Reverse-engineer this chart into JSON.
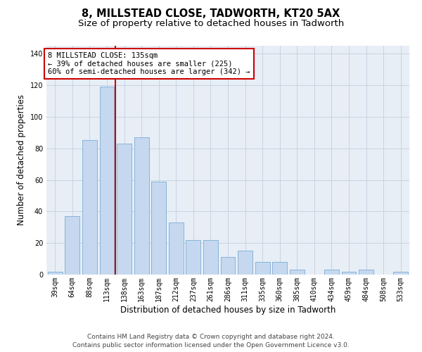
{
  "title": "8, MILLSTEAD CLOSE, TADWORTH, KT20 5AX",
  "subtitle": "Size of property relative to detached houses in Tadworth",
  "xlabel": "Distribution of detached houses by size in Tadworth",
  "ylabel": "Number of detached properties",
  "categories": [
    "39sqm",
    "64sqm",
    "88sqm",
    "113sqm",
    "138sqm",
    "163sqm",
    "187sqm",
    "212sqm",
    "237sqm",
    "261sqm",
    "286sqm",
    "311sqm",
    "335sqm",
    "360sqm",
    "385sqm",
    "410sqm",
    "434sqm",
    "459sqm",
    "484sqm",
    "508sqm",
    "533sqm"
  ],
  "values": [
    2,
    37,
    85,
    119,
    83,
    87,
    59,
    33,
    22,
    22,
    11,
    15,
    8,
    8,
    3,
    0,
    3,
    2,
    3,
    0,
    2
  ],
  "bar_color": "#c5d8ef",
  "bar_edge_color": "#7aadd4",
  "grid_color": "#c8d4e3",
  "bg_color": "#e8eef6",
  "vline_color": "#cc0000",
  "annotation_text": "8 MILLSTEAD CLOSE: 135sqm\n← 39% of detached houses are smaller (225)\n60% of semi-detached houses are larger (342) →",
  "annotation_box_color": "#ffffff",
  "annotation_box_edge": "#cc0000",
  "footer": "Contains HM Land Registry data © Crown copyright and database right 2024.\nContains public sector information licensed under the Open Government Licence v3.0.",
  "ylim": [
    0,
    145
  ],
  "title_fontsize": 10.5,
  "subtitle_fontsize": 9.5,
  "xlabel_fontsize": 8.5,
  "ylabel_fontsize": 8.5,
  "tick_fontsize": 7,
  "footer_fontsize": 6.5,
  "annotation_fontsize": 7.5
}
